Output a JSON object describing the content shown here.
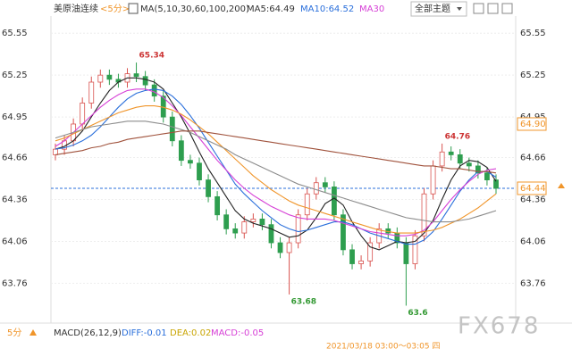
{
  "header": {
    "symbol": "美原油连续",
    "period": "<5分>",
    "ma_params": "MA(5,10,30,60,100,200)",
    "ma5": "MA5:64.49",
    "ma10": "MA10:64.52",
    "ma30": "MA30",
    "theme": "全部主题"
  },
  "footer": {
    "period": "5分",
    "macd": "MACD(26,12,9)",
    "diff": "DIFF:-0.01",
    "dea": "DEA:0.02",
    "macd_value": "MACD:-0.05",
    "time": "2021/03/18 03:00～03:05 四",
    "watermark": "FX678"
  },
  "chart_data": {
    "type": "candlestick",
    "ylim": [
      63.52,
      65.66
    ],
    "yticks": [
      65.55,
      65.25,
      64.95,
      64.66,
      64.36,
      64.06,
      63.76
    ],
    "grid": true,
    "up_color": "#d9534f",
    "down_color": "#2e9e4f",
    "open": [
      64.68,
      64.72,
      64.78,
      64.9,
      65.05,
      65.2,
      65.25,
      65.22,
      65.2,
      65.26,
      65.24,
      65.18,
      65.1,
      64.95,
      64.78,
      64.64,
      64.62,
      64.5,
      64.38,
      64.25,
      64.15,
      64.12,
      64.2,
      64.22,
      64.18,
      64.05,
      63.98,
      64.05,
      64.25,
      64.4,
      64.48,
      64.45,
      64.25,
      64.0,
      63.9,
      63.92,
      64.05,
      64.15,
      64.12,
      64.05,
      63.9,
      64.1,
      64.4,
      64.6,
      64.7,
      64.68,
      64.62,
      64.6,
      64.55,
      64.5
    ],
    "high": [
      64.76,
      64.82,
      64.94,
      65.09,
      65.24,
      65.29,
      65.29,
      65.26,
      65.3,
      65.34,
      65.28,
      65.22,
      65.14,
      64.99,
      64.82,
      64.68,
      64.66,
      64.54,
      64.42,
      64.29,
      64.19,
      64.24,
      64.26,
      64.26,
      64.22,
      64.09,
      64.09,
      64.29,
      64.44,
      64.52,
      64.52,
      64.49,
      64.29,
      64.04,
      63.96,
      64.09,
      64.19,
      64.19,
      64.16,
      64.09,
      64.14,
      64.44,
      64.64,
      64.76,
      64.74,
      64.72,
      64.66,
      64.64,
      64.59,
      64.54
    ],
    "low": [
      64.64,
      64.68,
      64.74,
      64.86,
      65.01,
      65.16,
      65.18,
      65.16,
      65.16,
      65.2,
      65.14,
      65.06,
      64.91,
      64.74,
      64.6,
      64.58,
      64.46,
      64.34,
      64.21,
      64.11,
      64.08,
      64.08,
      64.16,
      64.14,
      64.01,
      63.94,
      63.68,
      64.01,
      64.21,
      64.36,
      64.41,
      64.21,
      63.96,
      63.86,
      63.86,
      63.88,
      64.01,
      64.08,
      64.01,
      63.6,
      63.86,
      64.06,
      64.36,
      64.56,
      64.64,
      64.58,
      64.56,
      64.51,
      64.46,
      64.4
    ],
    "close": [
      64.72,
      64.78,
      64.9,
      65.05,
      65.2,
      65.25,
      65.22,
      65.2,
      65.26,
      65.24,
      65.18,
      65.1,
      64.95,
      64.78,
      64.64,
      64.62,
      64.5,
      64.38,
      64.25,
      64.15,
      64.12,
      64.2,
      64.22,
      64.18,
      64.05,
      63.98,
      64.05,
      64.25,
      64.4,
      64.48,
      64.45,
      64.25,
      64.0,
      63.9,
      63.92,
      64.05,
      64.15,
      64.12,
      64.05,
      63.9,
      64.1,
      64.4,
      64.6,
      64.7,
      64.68,
      64.62,
      64.6,
      64.55,
      64.5,
      64.44
    ],
    "marked_highs": [
      9,
      43
    ],
    "marked_lows": [
      26,
      39
    ],
    "series": [
      {
        "color": "#222222",
        "values": [
          64.72,
          64.74,
          64.78,
          64.85,
          64.95,
          65.05,
          65.14,
          65.2,
          65.23,
          65.23,
          65.22,
          65.2,
          65.15,
          65.05,
          64.95,
          64.83,
          64.7,
          64.58,
          64.48,
          64.38,
          64.28,
          64.22,
          64.19,
          64.17,
          64.15,
          64.12,
          64.09,
          64.1,
          64.14,
          64.23,
          64.33,
          64.37,
          64.32,
          64.2,
          64.1,
          64.02,
          64.0,
          64.03,
          64.06,
          64.05,
          64.06,
          64.12,
          64.21,
          64.36,
          64.5,
          64.6,
          64.64,
          64.63,
          64.59,
          64.49
        ]
      },
      {
        "color": "#2a6fdb",
        "values": [
          64.72,
          64.73,
          64.75,
          64.78,
          64.82,
          64.88,
          64.95,
          65.02,
          65.08,
          65.12,
          65.14,
          65.15,
          65.14,
          65.1,
          65.04,
          64.96,
          64.87,
          64.77,
          64.67,
          64.57,
          64.47,
          64.4,
          64.34,
          64.28,
          64.23,
          64.18,
          64.15,
          64.13,
          64.14,
          64.16,
          64.18,
          64.2,
          64.2,
          64.18,
          64.15,
          64.12,
          64.1,
          64.08,
          64.06,
          64.04,
          64.04,
          64.07,
          64.13,
          64.22,
          64.32,
          64.42,
          64.5,
          64.56,
          64.56,
          64.52
        ]
      },
      {
        "color": "#d63fd6",
        "values": [
          64.74,
          64.78,
          64.84,
          64.9,
          64.96,
          65.02,
          65.07,
          65.11,
          65.14,
          65.15,
          65.15,
          65.13,
          65.09,
          65.03,
          64.96,
          64.88,
          64.8,
          64.72,
          64.64,
          64.57,
          64.5,
          64.44,
          64.39,
          64.35,
          64.31,
          64.28,
          64.25,
          64.23,
          64.22,
          64.22,
          64.22,
          64.21,
          64.19,
          64.17,
          64.15,
          64.13,
          64.12,
          64.11,
          64.1,
          64.1,
          64.11,
          64.14,
          64.2,
          64.28,
          64.36,
          64.43,
          64.49,
          64.54,
          64.57,
          64.58
        ]
      },
      {
        "color": "#f0952a",
        "values": [
          64.78,
          64.8,
          64.83,
          64.86,
          64.89,
          64.92,
          64.95,
          64.98,
          65.0,
          65.02,
          65.03,
          65.03,
          65.02,
          65.0,
          64.97,
          64.93,
          64.88,
          64.83,
          64.77,
          64.71,
          64.65,
          64.59,
          64.53,
          64.48,
          64.43,
          64.39,
          64.35,
          64.32,
          64.3,
          64.28,
          64.26,
          64.24,
          64.22,
          64.2,
          64.18,
          64.16,
          64.14,
          64.13,
          64.12,
          64.12,
          64.12,
          64.13,
          64.14,
          64.16,
          64.19,
          64.22,
          64.26,
          64.3,
          64.35,
          64.4
        ]
      },
      {
        "color": "#8c8c8c",
        "values": [
          64.8,
          64.82,
          64.84,
          64.86,
          64.88,
          64.89,
          64.9,
          64.91,
          64.92,
          64.92,
          64.92,
          64.91,
          64.9,
          64.88,
          64.86,
          64.84,
          64.81,
          64.78,
          64.75,
          64.72,
          64.68,
          64.65,
          64.62,
          64.59,
          64.56,
          64.53,
          64.5,
          64.47,
          64.45,
          64.43,
          64.41,
          64.39,
          64.37,
          64.35,
          64.33,
          64.31,
          64.29,
          64.27,
          64.25,
          64.23,
          64.22,
          64.21,
          64.2,
          64.2,
          64.2,
          64.21,
          64.22,
          64.24,
          64.26,
          64.28
        ]
      },
      {
        "color": "#a0523c",
        "values": [
          64.68,
          64.69,
          64.7,
          64.71,
          64.73,
          64.74,
          64.76,
          64.77,
          64.79,
          64.8,
          64.81,
          64.82,
          64.83,
          64.84,
          64.85,
          64.85,
          64.85,
          64.84,
          64.83,
          64.82,
          64.81,
          64.8,
          64.79,
          64.78,
          64.77,
          64.76,
          64.75,
          64.74,
          64.73,
          64.72,
          64.71,
          64.7,
          64.69,
          64.68,
          64.67,
          64.66,
          64.65,
          64.64,
          64.63,
          64.62,
          64.61,
          64.6,
          64.6,
          64.59,
          64.58,
          64.58,
          64.57,
          64.56,
          64.56,
          64.55
        ]
      }
    ],
    "price_markers": [
      {
        "value": 64.9,
        "label": "64.90",
        "color": "#f0952a"
      },
      {
        "value": 64.44,
        "label": "64.44",
        "color": "#f0952a"
      }
    ],
    "current_line": {
      "value": 64.44,
      "color": "#2a6fdb"
    }
  }
}
